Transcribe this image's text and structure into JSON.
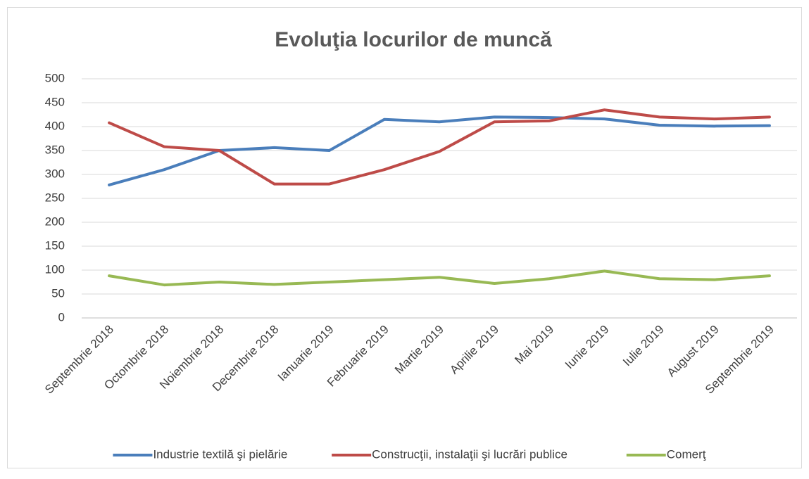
{
  "chart_data": {
    "type": "line",
    "title": "Evoluţia locurilor de muncă",
    "categories": [
      "Septembrie 2018",
      "Octombrie 2018",
      "Noiembrie 2018",
      "Decembrie 2018",
      "Ianuarie 2019",
      "Februarie 2019",
      "Martie 2019",
      "Aprilie 2019",
      "Mai 2019",
      "Iunie 2019",
      "Iulie 2019",
      "August 2019",
      "Septembrie 2019"
    ],
    "series": [
      {
        "name": "Industrie textilă şi pielărie",
        "color": "#4a7ebb",
        "values": [
          278,
          310,
          350,
          356,
          350,
          415,
          410,
          420,
          419,
          416,
          403,
          401,
          402
        ]
      },
      {
        "name": "Construcţii, instalaţii şi lucrări publice",
        "color": "#be4b48",
        "values": [
          408,
          358,
          350,
          280,
          280,
          310,
          348,
          410,
          412,
          435,
          420,
          416,
          420
        ]
      },
      {
        "name": "Comerţ",
        "color": "#98b954",
        "values": [
          88,
          69,
          75,
          70,
          75,
          80,
          85,
          72,
          82,
          98,
          82,
          80,
          88
        ]
      }
    ],
    "ylim": [
      0,
      500
    ],
    "yticks": [
      0,
      50,
      100,
      150,
      200,
      250,
      300,
      350,
      400,
      450,
      500
    ],
    "grid": true,
    "legend": "bottom"
  }
}
